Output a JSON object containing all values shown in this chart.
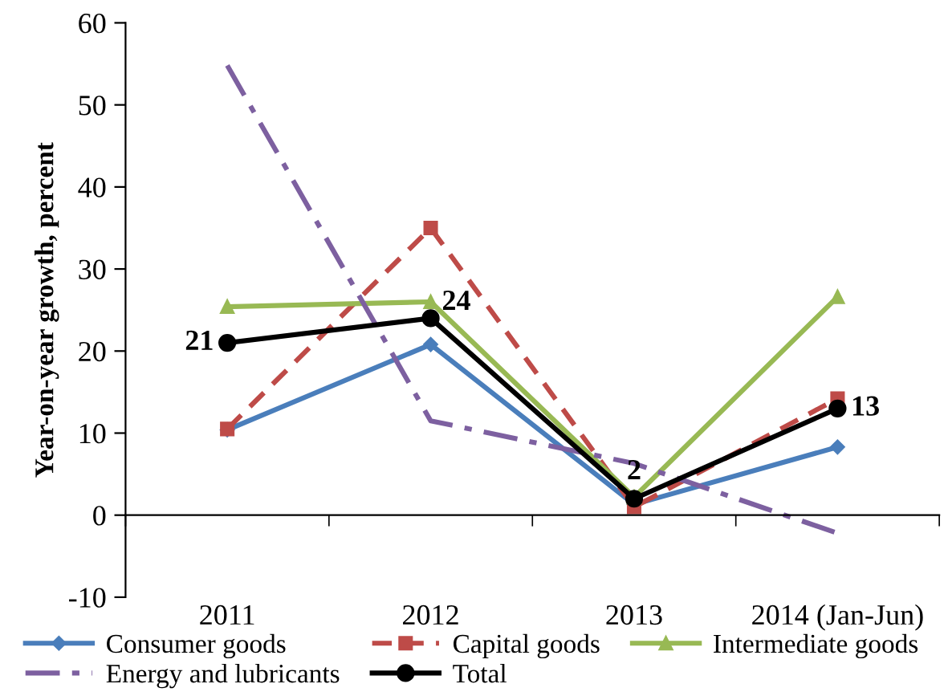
{
  "chart_data": {
    "type": "line",
    "ylabel": "Year-on-year growth, percent",
    "categories": [
      "2011",
      "2012",
      "2013",
      "2014 (Jan-Jun)"
    ],
    "series": [
      {
        "name": "Consumer goods",
        "color": "#4a7ebb",
        "values": [
          10.4,
          20.8,
          1.3,
          8.3
        ],
        "marker": "diamond",
        "line_style": "solid"
      },
      {
        "name": "Capital goods",
        "color": "#be4b48",
        "values": [
          10.5,
          35,
          1,
          14.2
        ],
        "marker": "square",
        "line_style": "dashed"
      },
      {
        "name": "Intermediate goods",
        "color": "#98b954",
        "values": [
          25.4,
          26,
          2.2,
          26.6
        ],
        "marker": "triangle",
        "line_style": "solid"
      },
      {
        "name": "Energy and lubricants",
        "color": "#7d60a0",
        "values": [
          54.8,
          11.5,
          6.3,
          -2.2
        ],
        "marker": "none",
        "line_style": "dashdot"
      },
      {
        "name": "Total",
        "color": "#000000",
        "values": [
          21,
          24,
          2,
          13
        ],
        "marker": "circle",
        "line_style": "solid",
        "value_labels": [
          "21",
          "24",
          "2",
          "13"
        ]
      }
    ],
    "ylim": [
      -10,
      60
    ],
    "yticks": [
      -10,
      0,
      10,
      20,
      30,
      40,
      50,
      60
    ],
    "legend": "bottom"
  }
}
